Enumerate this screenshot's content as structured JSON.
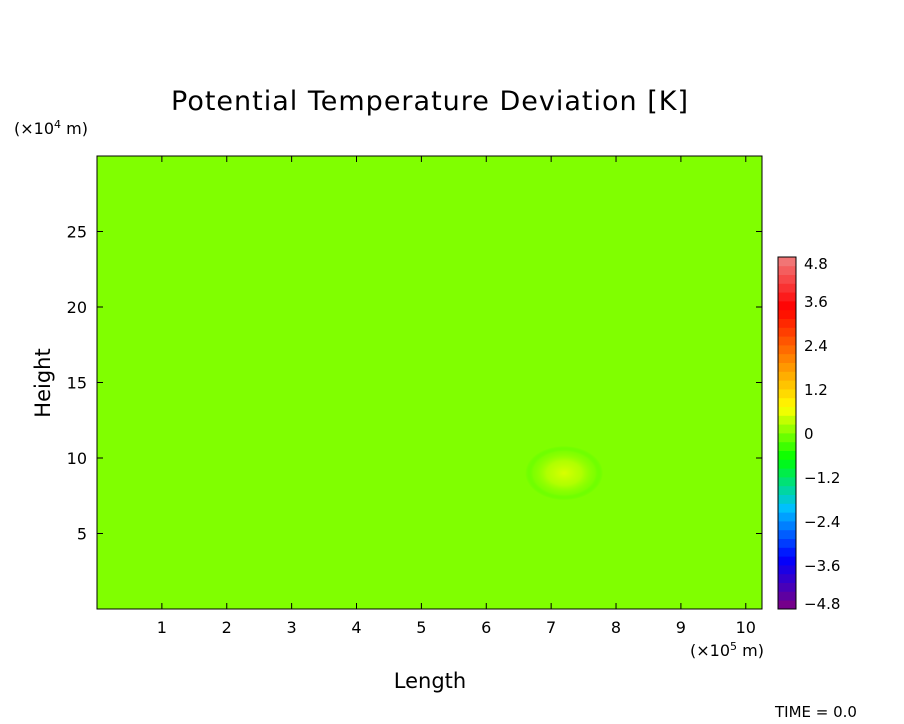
{
  "chart_data": {
    "type": "heatmap",
    "title": "Potential Temperature Deviation [K]",
    "xlabel": "Length",
    "ylabel": "Height",
    "x_unit_prefix": "(×10",
    "x_unit_exp": "5",
    "x_unit_suffix": " m)",
    "y_unit_prefix": "(×10",
    "y_unit_exp": "4",
    "y_unit_suffix": " m)",
    "xlim": [
      0,
      10.25
    ],
    "ylim": [
      0,
      30
    ],
    "x_ticks": [
      1,
      2,
      3,
      4,
      5,
      6,
      7,
      8,
      9,
      10
    ],
    "x_tick_labels": [
      "1",
      "2",
      "3",
      "4",
      "5",
      "6",
      "7",
      "8",
      "9",
      "10"
    ],
    "y_ticks": [
      5,
      10,
      15,
      20,
      25
    ],
    "y_tick_labels": [
      "5",
      "10",
      "15",
      "20",
      "25"
    ],
    "field": {
      "background_value": 0.0,
      "bubble": {
        "x_center": 7.2,
        "y_center": 9.0,
        "x_radius": 0.6,
        "y_radius": 1.8,
        "amplitude": 0.9
      }
    },
    "colorbar": {
      "min": -4.8,
      "max": 4.8,
      "levels": 40,
      "tick_values": [
        4.8,
        3.6,
        2.4,
        1.2,
        0,
        -1.2,
        -2.4,
        -3.6,
        -4.8
      ],
      "tick_labels": [
        "4.8",
        "3.6",
        "2.4",
        "1.2",
        "0",
        "−1.2",
        "−2.4",
        "−3.6",
        "−4.8"
      ],
      "stops": [
        "#800080",
        "#0000ff",
        "#00bfff",
        "#00ff00",
        "#ffff00",
        "#ff8000",
        "#ff0000",
        "#f08080"
      ]
    },
    "annotation": "TIME = 0.0",
    "grid": false
  }
}
